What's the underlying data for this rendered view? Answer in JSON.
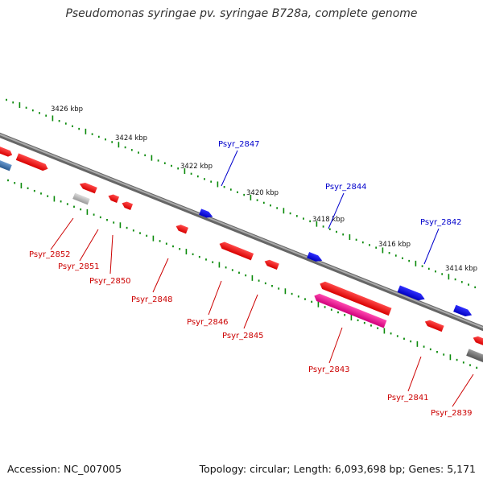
{
  "title": "Pseudomonas syringae pv. syringae B728a, complete genome",
  "accession_text": "Accession: NC_007005",
  "stats_text": "Topology: circular; Length: 6,093,698 bp; Genes: 5,171",
  "colors": {
    "backbone": "#888888",
    "forward_gene": "#1010e0",
    "reverse_gene": "#ee1010",
    "pseudo_gene": "#ee1090",
    "grey_gene": "#aaaaaa",
    "tick": "#0a8a0a",
    "forward_label": "#0000cc",
    "reverse_label": "#cc0000"
  },
  "kbp_labels": [
    "3426 kbp",
    "3424 kbp",
    "3422 kbp",
    "3420 kbp",
    "3418 kbp",
    "3416 kbp",
    "3414 kbp"
  ],
  "forward_labels": [
    "Psyr_2847",
    "Psyr_2844",
    "Psyr_2842"
  ],
  "reverse_labels": [
    "Psyr_2852",
    "Psyr_2851",
    "Psyr_2850",
    "Psyr_2848",
    "Psyr_2846",
    "Psyr_2845",
    "Psyr_2843",
    "Psyr_2841",
    "Psyr_2839"
  ]
}
